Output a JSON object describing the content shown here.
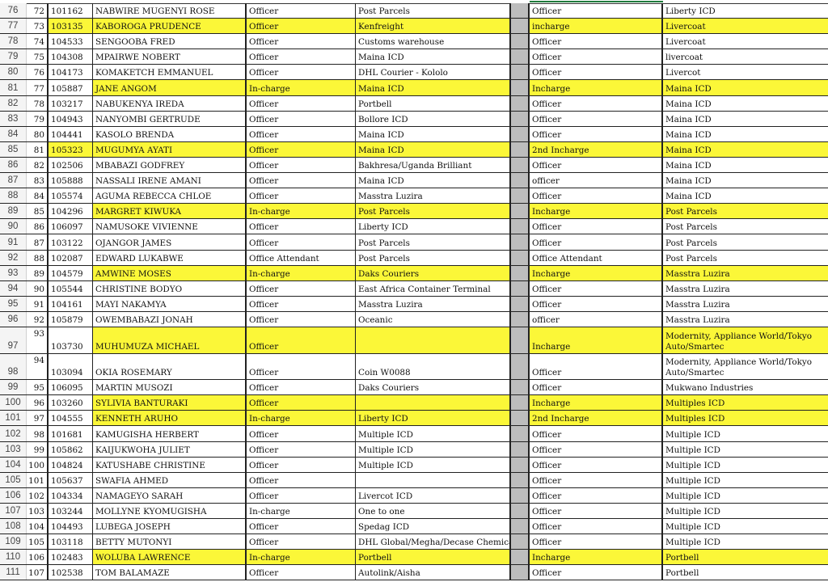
{
  "colors": {
    "highlight": "#fbf738",
    "separator_column": "#bdbdbd",
    "row_header_bg": "#f4f4f4"
  },
  "rows": [
    {
      "r": "76",
      "n": "72",
      "id": "101162",
      "name": "NABWIRE MUGENYI ROSE",
      "role": "Officer",
      "station": "Post Parcels",
      "role2": "Officer",
      "station2": "Liberty ICD",
      "highlight": false,
      "highlight_id": false
    },
    {
      "r": "77",
      "n": "73",
      "id": "103135",
      "name": "KABOROGA PRUDENCE",
      "role": "Officer",
      "station": "Kenfreight",
      "role2": "incharge",
      "station2": "Livercoat",
      "highlight": true,
      "highlight_id": true
    },
    {
      "r": "78",
      "n": "74",
      "id": "104533",
      "name": "SENGOOBA FRED",
      "role": "Officer",
      "station": "Customs warehouse",
      "role2": "Officer",
      "station2": "Livercoat",
      "highlight": false,
      "highlight_id": false
    },
    {
      "r": "79",
      "n": "75",
      "id": "104308",
      "name": "MPAIRWE NOBERT",
      "role": "Officer",
      "station": "Maina ICD",
      "role2": "Officer",
      "station2": "livercoat",
      "highlight": false,
      "highlight_id": false
    },
    {
      "r": "80",
      "n": "76",
      "id": "104173",
      "name": "KOMAKETCH EMMANUEL",
      "role": "Officer",
      "station": "DHL Courier - Kololo",
      "role2": "Officer",
      "station2": "Livercot",
      "highlight": false,
      "highlight_id": false
    },
    {
      "r": "81",
      "n": "77",
      "id": "105887",
      "name": "JANE  ANGOM",
      "role": "In-charge",
      "station": "Maina ICD",
      "role2": "Incharge",
      "station2": "Maina ICD",
      "highlight": true,
      "highlight_id": false
    },
    {
      "r": "82",
      "n": "78",
      "id": "103217",
      "name": "NABUKENYA IREDA",
      "role": "Officer",
      "station": "Portbell",
      "role2": "Officer",
      "station2": "Maina ICD",
      "highlight": false,
      "highlight_id": false
    },
    {
      "r": "83",
      "n": "79",
      "id": "104943",
      "name": "NANYOMBI GERTRUDE",
      "role": "Officer",
      "station": "Bollore ICD",
      "role2": "Officer",
      "station2": "Maina ICD",
      "highlight": false,
      "highlight_id": false
    },
    {
      "r": "84",
      "n": "80",
      "id": "104441",
      "name": "KASOLO BRENDA",
      "role": "Officer",
      "station": "Maina ICD",
      "role2": "Officer",
      "station2": "Maina ICD",
      "highlight": false,
      "highlight_id": false
    },
    {
      "r": "85",
      "n": "81",
      "id": "105323",
      "name": "MUGUMYA AYATI",
      "role": "Officer",
      "station": "Maina ICD",
      "role2": "2nd Incharge",
      "station2": "Maina ICD",
      "highlight": true,
      "highlight_id": true
    },
    {
      "r": "86",
      "n": "82",
      "id": "102506",
      "name": "MBABAZI GODFREY",
      "role": "Officer",
      "station": "Bakhresa/Uganda Brilliant",
      "role2": "Officer",
      "station2": "Maina ICD",
      "highlight": false,
      "highlight_id": false
    },
    {
      "r": "87",
      "n": "83",
      "id": "105888",
      "name": "NASSALI IRENE AMANI",
      "role": "Officer",
      "station": "Maina ICD",
      "role2": "officer",
      "station2": "Maina ICD",
      "highlight": false,
      "highlight_id": false
    },
    {
      "r": "88",
      "n": "84",
      "id": "105574",
      "name": "AGUMA REBECCA CHLOE",
      "role": "Officer",
      "station": "Masstra Luzira",
      "role2": "Officer",
      "station2": "Maina ICD",
      "highlight": false,
      "highlight_id": false
    },
    {
      "r": "89",
      "n": "85",
      "id": "104296",
      "name": "MARGRET KIWUKA",
      "role": "In-charge",
      "station": "Post Parcels",
      "role2": "Incharge",
      "station2": "Post Parcels",
      "highlight": true,
      "highlight_id": false
    },
    {
      "r": "90",
      "n": "86",
      "id": "106097",
      "name": "NAMUSOKE VIVIENNE",
      "role": "Officer",
      "station": "Liberty ICD",
      "role2": "Officer",
      "station2": "Post Parcels",
      "highlight": false,
      "highlight_id": false
    },
    {
      "r": "91",
      "n": "87",
      "id": "103122",
      "name": "OJANGOR JAMES",
      "role": "Officer",
      "station": "Post Parcels",
      "role2": "Officer",
      "station2": "Post Parcels",
      "highlight": false,
      "highlight_id": false
    },
    {
      "r": "92",
      "n": "88",
      "id": "102087",
      "name": "EDWARD LUKABWE",
      "role": "Office Attendant",
      "station": "Post Parcels",
      "role2": "Office Attendant",
      "station2": "Post Parcels",
      "highlight": false,
      "highlight_id": false
    },
    {
      "r": "93",
      "n": "89",
      "id": "104579",
      "name": "AMWINE MOSES",
      "role": "In-charge",
      "station": "Daks Couriers",
      "role2": "Incharge",
      "station2": "Masstra Luzira",
      "highlight": true,
      "highlight_id": false
    },
    {
      "r": "94",
      "n": "90",
      "id": "105544",
      "name": "CHRISTINE BODYO",
      "role": "Officer",
      "station": "East Africa Container Terminal",
      "role2": "Officer",
      "station2": "Masstra Luzira",
      "highlight": false,
      "highlight_id": false
    },
    {
      "r": "95",
      "n": "91",
      "id": "104161",
      "name": "MAYI NAKAMYA",
      "role": "Officer",
      "station": "Masstra Luzira",
      "role2": "Officer",
      "station2": "Masstra Luzira",
      "highlight": false,
      "highlight_id": false
    },
    {
      "r": "96",
      "n": "92",
      "id": "105879",
      "name": "OWEMBABAZI JONAH",
      "role": "Officer",
      "station": "Oceanic",
      "role2": "officer",
      "station2": "Masstra Luzira",
      "highlight": false,
      "highlight_id": false
    },
    {
      "r": "97",
      "n": "93",
      "id": "103730",
      "name": "MUHUMUZA MICHAEL",
      "role": "Officer",
      "station": "",
      "role2": "Incharge",
      "station2": "Modernity, Appliance World/Tokyo Auto/Smartec",
      "highlight": true,
      "highlight_id": false,
      "tall": true
    },
    {
      "r": "98",
      "n": "94",
      "id": "103094",
      "name": "OKIA ROSEMARY",
      "role": "Officer",
      "station": "Coin W0088",
      "role2": "Officer",
      "station2": "Modernity, Appliance World/Tokyo Auto/Smartec",
      "highlight": false,
      "highlight_id": false,
      "tall": true
    },
    {
      "r": "99",
      "n": "95",
      "id": "106095",
      "name": "MARTIN MUSOZI",
      "role": "Officer",
      "station": "Daks Couriers",
      "role2": "Officer",
      "station2": "Mukwano Industries",
      "highlight": false,
      "highlight_id": false
    },
    {
      "r": "100",
      "n": "96",
      "id": "103260",
      "name": "SYLIVIA BANTURAKI",
      "role": "Officer",
      "station": "",
      "role2": "Incharge",
      "station2": "Multiples ICD",
      "highlight": true,
      "highlight_id": false
    },
    {
      "r": "101",
      "n": "97",
      "id": "104555",
      "name": "KENNETH ARUHO",
      "role": "In-charge",
      "station": "Liberty ICD",
      "role2": "2nd Incharge",
      "station2": "Multiples ICD",
      "highlight": true,
      "highlight_id": false
    },
    {
      "r": "102",
      "n": "98",
      "id": "101681",
      "name": "KAMUGISHA HERBERT",
      "role": "Officer",
      "station": "Multiple ICD",
      "role2": "Officer",
      "station2": "Multiple ICD",
      "highlight": false,
      "highlight_id": false
    },
    {
      "r": "103",
      "n": "99",
      "id": "105862",
      "name": "KAIJUKWOHA JULIET",
      "role": "Officer",
      "station": "Multiple ICD",
      "role2": "Officer",
      "station2": "Multiple ICD",
      "highlight": false,
      "highlight_id": false
    },
    {
      "r": "104",
      "n": "100",
      "id": "104824",
      "name": "KATUSHABE CHRISTINE",
      "role": "Officer",
      "station": "Multiple ICD",
      "role2": "Officer",
      "station2": "Multiple ICD",
      "highlight": false,
      "highlight_id": false
    },
    {
      "r": "105",
      "n": "101",
      "id": "105637",
      "name": "SWAFIA AHMED",
      "role": "Officer",
      "station": "",
      "role2": "Officer",
      "station2": "Multiple ICD",
      "highlight": false,
      "highlight_id": false
    },
    {
      "r": "106",
      "n": "102",
      "id": "104334",
      "name": "NAMAGEYO SARAH",
      "role": "Officer",
      "station": "Livercot ICD",
      "role2": "Officer",
      "station2": "Multiple ICD",
      "highlight": false,
      "highlight_id": false
    },
    {
      "r": "107",
      "n": "103",
      "id": "103244",
      "name": "MOLLYNE KYOMUGISHA",
      "role": "In-charge",
      "station": "One to one",
      "role2": "Officer",
      "station2": "Multiple ICD",
      "highlight": false,
      "highlight_id": false
    },
    {
      "r": "108",
      "n": "104",
      "id": "104493",
      "name": "LUBEGA JOSEPH",
      "role": "Officer",
      "station": "Spedag ICD",
      "role2": "Officer",
      "station2": "Multiple ICD",
      "highlight": false,
      "highlight_id": false
    },
    {
      "r": "109",
      "n": "105",
      "id": "103118",
      "name": "BETTY MUTONYI",
      "role": "Officer",
      "station": "DHL Global/Megha/Decase Chemical",
      "role2": "Officer",
      "station2": "Multiple ICD",
      "highlight": false,
      "highlight_id": false
    },
    {
      "r": "110",
      "n": "106",
      "id": "102483",
      "name": "WOLUBA LAWRENCE",
      "role": "In-charge",
      "station": "Portbell",
      "role2": "Incharge",
      "station2": "Portbell",
      "highlight": true,
      "highlight_id": false
    },
    {
      "r": "111",
      "n": "107",
      "id": "102538",
      "name": "TOM BALAMAZE",
      "role": "Officer",
      "station": "Autolink/Aisha",
      "role2": "Officer",
      "station2": "Portbell",
      "highlight": false,
      "highlight_id": false
    }
  ]
}
